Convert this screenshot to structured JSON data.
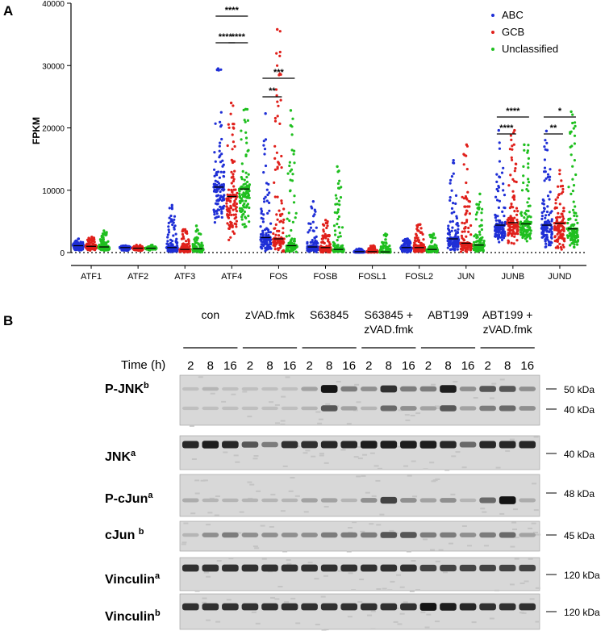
{
  "panel_a": {
    "label": "A",
    "chart_data": {
      "type": "scatter",
      "ylabel": "FPKM",
      "xlabel": "",
      "ylim": [
        0,
        40000
      ],
      "yticks": [
        0,
        10000,
        20000,
        30000,
        40000
      ],
      "categories": [
        "ATF1",
        "ATF2",
        "ATF3",
        "ATF4",
        "FOS",
        "FOSB",
        "FOSL1",
        "FOSL2",
        "JUN",
        "JUNB",
        "JUND"
      ],
      "legend_placement": "top-right",
      "series": [
        {
          "name": "ABC",
          "color": "#1f2fd6",
          "median": [
            1100,
            800,
            800,
            10500,
            2400,
            900,
            150,
            800,
            2200,
            4400,
            4400
          ],
          "max": [
            2200,
            1100,
            7600,
            29500,
            22300,
            8200,
            600,
            2200,
            14800,
            19600,
            19500
          ],
          "min": [
            300,
            300,
            0,
            3800,
            200,
            0,
            0,
            0,
            200,
            1500,
            600
          ]
        },
        {
          "name": "GCB",
          "color": "#e0201b",
          "median": [
            1000,
            700,
            500,
            9000,
            2200,
            800,
            150,
            800,
            1500,
            4800,
            4700
          ],
          "max": [
            2500,
            1200,
            3700,
            24000,
            35800,
            5200,
            1100,
            4500,
            17300,
            19600,
            13200
          ],
          "min": [
            300,
            300,
            0,
            1800,
            100,
            0,
            0,
            0,
            100,
            1400,
            500
          ]
        },
        {
          "name": "Unclassified",
          "color": "#1fbf1f",
          "median": [
            900,
            700,
            600,
            10200,
            1100,
            500,
            100,
            500,
            1200,
            4600,
            3800
          ],
          "max": [
            3500,
            1200,
            4300,
            23000,
            22800,
            13800,
            3000,
            3000,
            9400,
            17300,
            22600
          ],
          "min": [
            300,
            300,
            0,
            4000,
            100,
            0,
            0,
            0,
            100,
            1500,
            800
          ]
        }
      ],
      "significance": [
        {
          "gene": "ATF4",
          "compare": "ABC vs Unclassified",
          "label": "****"
        },
        {
          "gene": "ATF4",
          "compare": "ABC vs GCB",
          "label": "****"
        },
        {
          "gene": "ATF4",
          "compare": "GCB vs Unclassified",
          "label": "****"
        },
        {
          "gene": "FOS",
          "compare": "ABC vs Unclassified",
          "label": "***"
        },
        {
          "gene": "FOS",
          "compare": "ABC vs GCB",
          "label": "**"
        },
        {
          "gene": "JUNB",
          "compare": "ABC vs Unclassified",
          "label": "****"
        },
        {
          "gene": "JUNB",
          "compare": "ABC vs GCB",
          "label": "****"
        },
        {
          "gene": "JUND",
          "compare": "ABC vs Unclassified",
          "label": "*"
        },
        {
          "gene": "JUND",
          "compare": "ABC vs GCB",
          "label": "**"
        }
      ]
    }
  },
  "panel_b": {
    "label": "B",
    "time_label": "Time (h)",
    "time_points": [
      "2",
      "8",
      "16"
    ],
    "conditions": [
      {
        "line1": "con",
        "line2": ""
      },
      {
        "line1": "zVAD.fmk",
        "line2": ""
      },
      {
        "line1": "S63845",
        "line2": ""
      },
      {
        "line1": "S63845 +",
        "line2": "zVAD.fmk"
      },
      {
        "line1": "ABT199",
        "line2": ""
      },
      {
        "line1": "ABT199 +",
        "line2": "zVAD.fmk"
      }
    ],
    "blots": [
      {
        "name": "P-JNK",
        "sup": "b",
        "markers": [
          "50 kDa",
          "40 kDa"
        ]
      },
      {
        "name": "JNK",
        "sup": "a",
        "markers": [
          "40 kDa"
        ]
      },
      {
        "name": "P-cJun",
        "sup": "a",
        "markers": [
          "48 kDa"
        ]
      },
      {
        "name": "cJun ",
        "sup": "b",
        "markers": [
          "45 kDa"
        ]
      },
      {
        "name": "Vinculin",
        "sup": "a",
        "markers": [
          "120 kDa"
        ]
      },
      {
        "name": "Vinculin",
        "sup": "b",
        "markers": [
          "120 kDa"
        ]
      }
    ],
    "band_intensity": {
      "P-JNK_upper": [
        0.05,
        0.1,
        0.05,
        0.05,
        0.05,
        0.05,
        0.2,
        0.95,
        0.4,
        0.3,
        0.8,
        0.4,
        0.4,
        0.9,
        0.3,
        0.6,
        0.6,
        0.3
      ],
      "P-JNK_lower": [
        0.05,
        0.05,
        0.05,
        0.05,
        0.05,
        0.05,
        0.1,
        0.6,
        0.2,
        0.1,
        0.5,
        0.3,
        0.2,
        0.6,
        0.2,
        0.4,
        0.5,
        0.3
      ],
      "JNK": [
        0.85,
        0.9,
        0.85,
        0.6,
        0.4,
        0.8,
        0.8,
        0.85,
        0.85,
        0.9,
        0.9,
        0.9,
        0.9,
        0.85,
        0.5,
        0.85,
        0.85,
        0.85
      ],
      "P-cJun": [
        0.15,
        0.1,
        0.1,
        0.1,
        0.1,
        0.1,
        0.2,
        0.2,
        0.1,
        0.3,
        0.7,
        0.3,
        0.2,
        0.3,
        0.1,
        0.5,
        0.95,
        0.15
      ],
      "cJun": [
        0.1,
        0.3,
        0.4,
        0.3,
        0.3,
        0.3,
        0.3,
        0.4,
        0.4,
        0.4,
        0.6,
        0.6,
        0.4,
        0.4,
        0.3,
        0.4,
        0.5,
        0.2
      ],
      "Vinculin_a": [
        0.8,
        0.8,
        0.8,
        0.8,
        0.8,
        0.8,
        0.8,
        0.8,
        0.8,
        0.8,
        0.8,
        0.8,
        0.7,
        0.7,
        0.7,
        0.7,
        0.7,
        0.7
      ],
      "Vinculin_b": [
        0.8,
        0.8,
        0.8,
        0.8,
        0.8,
        0.8,
        0.8,
        0.8,
        0.8,
        0.8,
        0.8,
        0.8,
        0.95,
        0.9,
        0.85,
        0.8,
        0.8,
        0.8
      ]
    }
  }
}
